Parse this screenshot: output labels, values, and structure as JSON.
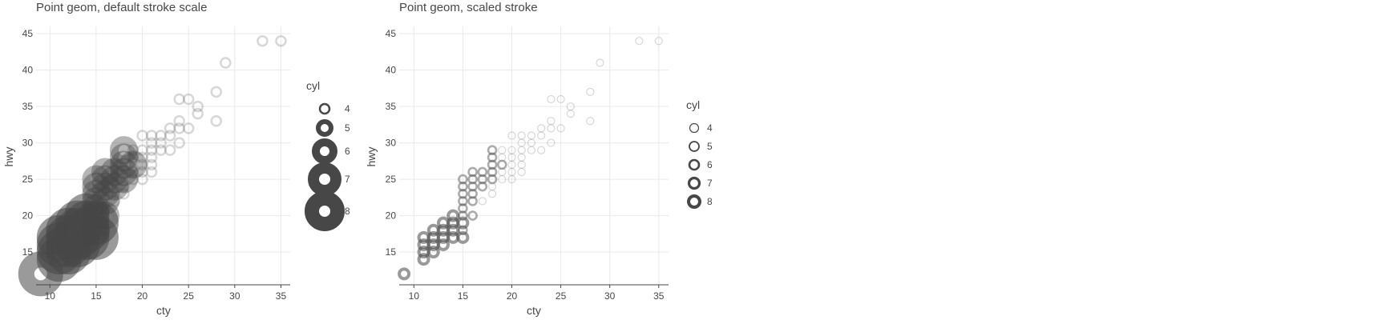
{
  "chart_data": [
    {
      "type": "scatter",
      "title": "Point geom, default stroke scale",
      "xlabel": "cty",
      "ylabel": "hwy",
      "xlim": [
        8.5,
        36
      ],
      "ylim": [
        10.5,
        46
      ],
      "x_ticks": [
        "10",
        "15",
        "20",
        "25",
        "30",
        "35"
      ],
      "y_ticks": [
        "15",
        "20",
        "25",
        "30",
        "35",
        "40",
        "45"
      ],
      "grid": true,
      "legend": {
        "title": "cyl",
        "position": "right",
        "entries": [
          {
            "label": "4",
            "cyl": 4
          },
          {
            "label": "5",
            "cyl": 5
          },
          {
            "label": "6",
            "cyl": 6
          },
          {
            "label": "7",
            "cyl": 7
          },
          {
            "label": "8",
            "cyl": 8
          }
        ]
      },
      "stroke_scale": "default",
      "points": [
        {
          "x": 9,
          "y": 12,
          "cyl": 8
        },
        {
          "x": 11,
          "y": 14,
          "cyl": 8
        },
        {
          "x": 11,
          "y": 15,
          "cyl": 8
        },
        {
          "x": 11,
          "y": 16,
          "cyl": 8
        },
        {
          "x": 11,
          "y": 17,
          "cyl": 8
        },
        {
          "x": 12,
          "y": 15,
          "cyl": 8
        },
        {
          "x": 12,
          "y": 16,
          "cyl": 8
        },
        {
          "x": 12,
          "y": 17,
          "cyl": 8
        },
        {
          "x": 12,
          "y": 18,
          "cyl": 8
        },
        {
          "x": 13,
          "y": 16,
          "cyl": 8
        },
        {
          "x": 13,
          "y": 17,
          "cyl": 8
        },
        {
          "x": 13,
          "y": 18,
          "cyl": 8
        },
        {
          "x": 13,
          "y": 19,
          "cyl": 8
        },
        {
          "x": 14,
          "y": 17,
          "cyl": 8
        },
        {
          "x": 14,
          "y": 18,
          "cyl": 8
        },
        {
          "x": 14,
          "y": 19,
          "cyl": 8
        },
        {
          "x": 14,
          "y": 20,
          "cyl": 8
        },
        {
          "x": 15,
          "y": 17,
          "cyl": 8
        },
        {
          "x": 15,
          "y": 18,
          "cyl": 6
        },
        {
          "x": 15,
          "y": 19,
          "cyl": 8
        },
        {
          "x": 15,
          "y": 20,
          "cyl": 6
        },
        {
          "x": 15,
          "y": 21,
          "cyl": 6
        },
        {
          "x": 15,
          "y": 22,
          "cyl": 6
        },
        {
          "x": 15,
          "y": 23,
          "cyl": 6
        },
        {
          "x": 15,
          "y": 24,
          "cyl": 6
        },
        {
          "x": 15,
          "y": 25,
          "cyl": 6
        },
        {
          "x": 16,
          "y": 20,
          "cyl": 6
        },
        {
          "x": 16,
          "y": 22,
          "cyl": 6
        },
        {
          "x": 16,
          "y": 23,
          "cyl": 6
        },
        {
          "x": 16,
          "y": 24,
          "cyl": 6
        },
        {
          "x": 16,
          "y": 25,
          "cyl": 6
        },
        {
          "x": 16,
          "y": 26,
          "cyl": 6
        },
        {
          "x": 17,
          "y": 22,
          "cyl": 4
        },
        {
          "x": 17,
          "y": 24,
          "cyl": 6
        },
        {
          "x": 17,
          "y": 25,
          "cyl": 6
        },
        {
          "x": 17,
          "y": 26,
          "cyl": 6
        },
        {
          "x": 18,
          "y": 23,
          "cyl": 4
        },
        {
          "x": 18,
          "y": 24,
          "cyl": 4
        },
        {
          "x": 18,
          "y": 25,
          "cyl": 6
        },
        {
          "x": 18,
          "y": 26,
          "cyl": 6
        },
        {
          "x": 18,
          "y": 27,
          "cyl": 6
        },
        {
          "x": 18,
          "y": 28,
          "cyl": 6
        },
        {
          "x": 18,
          "y": 29,
          "cyl": 6
        },
        {
          "x": 19,
          "y": 25,
          "cyl": 4
        },
        {
          "x": 19,
          "y": 26,
          "cyl": 4
        },
        {
          "x": 19,
          "y": 27,
          "cyl": 6
        },
        {
          "x": 19,
          "y": 28,
          "cyl": 4
        },
        {
          "x": 19,
          "y": 29,
          "cyl": 4
        },
        {
          "x": 20,
          "y": 25,
          "cyl": 4
        },
        {
          "x": 20,
          "y": 26,
          "cyl": 4
        },
        {
          "x": 20,
          "y": 27,
          "cyl": 4
        },
        {
          "x": 20,
          "y": 28,
          "cyl": 4
        },
        {
          "x": 20,
          "y": 29,
          "cyl": 4
        },
        {
          "x": 20,
          "y": 31,
          "cyl": 4
        },
        {
          "x": 21,
          "y": 26,
          "cyl": 4
        },
        {
          "x": 21,
          "y": 27,
          "cyl": 4
        },
        {
          "x": 21,
          "y": 28,
          "cyl": 4
        },
        {
          "x": 21,
          "y": 29,
          "cyl": 4
        },
        {
          "x": 21,
          "y": 30,
          "cyl": 4
        },
        {
          "x": 21,
          "y": 31,
          "cyl": 4
        },
        {
          "x": 22,
          "y": 29,
          "cyl": 4
        },
        {
          "x": 22,
          "y": 30,
          "cyl": 4
        },
        {
          "x": 22,
          "y": 31,
          "cyl": 4
        },
        {
          "x": 23,
          "y": 29,
          "cyl": 4
        },
        {
          "x": 23,
          "y": 31,
          "cyl": 4
        },
        {
          "x": 23,
          "y": 32,
          "cyl": 4
        },
        {
          "x": 24,
          "y": 30,
          "cyl": 4
        },
        {
          "x": 24,
          "y": 32,
          "cyl": 4
        },
        {
          "x": 24,
          "y": 33,
          "cyl": 4
        },
        {
          "x": 24,
          "y": 36,
          "cyl": 4
        },
        {
          "x": 25,
          "y": 32,
          "cyl": 4
        },
        {
          "x": 25,
          "y": 36,
          "cyl": 4
        },
        {
          "x": 26,
          "y": 34,
          "cyl": 4
        },
        {
          "x": 26,
          "y": 35,
          "cyl": 4
        },
        {
          "x": 28,
          "y": 33,
          "cyl": 4
        },
        {
          "x": 28,
          "y": 37,
          "cyl": 4
        },
        {
          "x": 29,
          "y": 41,
          "cyl": 4
        },
        {
          "x": 33,
          "y": 44,
          "cyl": 4
        },
        {
          "x": 35,
          "y": 44,
          "cyl": 4
        }
      ]
    },
    {
      "type": "scatter",
      "title": "Point geom, scaled stroke",
      "xlabel": "cty",
      "ylabel": "hwy",
      "xlim": [
        8.5,
        36
      ],
      "ylim": [
        10.5,
        46
      ],
      "x_ticks": [
        "10",
        "15",
        "20",
        "25",
        "30",
        "35"
      ],
      "y_ticks": [
        "15",
        "20",
        "25",
        "30",
        "35",
        "40",
        "45"
      ],
      "grid": true,
      "legend": {
        "title": "cyl",
        "position": "right",
        "entries": [
          {
            "label": "4",
            "cyl": 4
          },
          {
            "label": "5",
            "cyl": 5
          },
          {
            "label": "6",
            "cyl": 6
          },
          {
            "label": "7",
            "cyl": 7
          },
          {
            "label": "8",
            "cyl": 8
          }
        ]
      },
      "stroke_scale": "scaled",
      "points": [
        {
          "x": 9,
          "y": 12,
          "cyl": 8
        },
        {
          "x": 11,
          "y": 14,
          "cyl": 8
        },
        {
          "x": 11,
          "y": 15,
          "cyl": 8
        },
        {
          "x": 11,
          "y": 16,
          "cyl": 8
        },
        {
          "x": 11,
          "y": 17,
          "cyl": 8
        },
        {
          "x": 12,
          "y": 15,
          "cyl": 8
        },
        {
          "x": 12,
          "y": 16,
          "cyl": 8
        },
        {
          "x": 12,
          "y": 17,
          "cyl": 8
        },
        {
          "x": 12,
          "y": 18,
          "cyl": 8
        },
        {
          "x": 13,
          "y": 16,
          "cyl": 8
        },
        {
          "x": 13,
          "y": 17,
          "cyl": 8
        },
        {
          "x": 13,
          "y": 18,
          "cyl": 8
        },
        {
          "x": 13,
          "y": 19,
          "cyl": 8
        },
        {
          "x": 14,
          "y": 17,
          "cyl": 8
        },
        {
          "x": 14,
          "y": 18,
          "cyl": 8
        },
        {
          "x": 14,
          "y": 19,
          "cyl": 8
        },
        {
          "x": 14,
          "y": 20,
          "cyl": 8
        },
        {
          "x": 15,
          "y": 17,
          "cyl": 8
        },
        {
          "x": 15,
          "y": 18,
          "cyl": 6
        },
        {
          "x": 15,
          "y": 19,
          "cyl": 8
        },
        {
          "x": 15,
          "y": 20,
          "cyl": 6
        },
        {
          "x": 15,
          "y": 21,
          "cyl": 6
        },
        {
          "x": 15,
          "y": 22,
          "cyl": 6
        },
        {
          "x": 15,
          "y": 23,
          "cyl": 6
        },
        {
          "x": 15,
          "y": 24,
          "cyl": 6
        },
        {
          "x": 15,
          "y": 25,
          "cyl": 6
        },
        {
          "x": 16,
          "y": 20,
          "cyl": 6
        },
        {
          "x": 16,
          "y": 22,
          "cyl": 6
        },
        {
          "x": 16,
          "y": 23,
          "cyl": 6
        },
        {
          "x": 16,
          "y": 24,
          "cyl": 6
        },
        {
          "x": 16,
          "y": 25,
          "cyl": 6
        },
        {
          "x": 16,
          "y": 26,
          "cyl": 6
        },
        {
          "x": 17,
          "y": 22,
          "cyl": 4
        },
        {
          "x": 17,
          "y": 24,
          "cyl": 6
        },
        {
          "x": 17,
          "y": 25,
          "cyl": 6
        },
        {
          "x": 17,
          "y": 26,
          "cyl": 6
        },
        {
          "x": 18,
          "y": 23,
          "cyl": 4
        },
        {
          "x": 18,
          "y": 24,
          "cyl": 4
        },
        {
          "x": 18,
          "y": 25,
          "cyl": 6
        },
        {
          "x": 18,
          "y": 26,
          "cyl": 6
        },
        {
          "x": 18,
          "y": 27,
          "cyl": 6
        },
        {
          "x": 18,
          "y": 28,
          "cyl": 6
        },
        {
          "x": 18,
          "y": 29,
          "cyl": 6
        },
        {
          "x": 19,
          "y": 25,
          "cyl": 4
        },
        {
          "x": 19,
          "y": 26,
          "cyl": 4
        },
        {
          "x": 19,
          "y": 27,
          "cyl": 6
        },
        {
          "x": 19,
          "y": 28,
          "cyl": 4
        },
        {
          "x": 19,
          "y": 29,
          "cyl": 4
        },
        {
          "x": 20,
          "y": 25,
          "cyl": 4
        },
        {
          "x": 20,
          "y": 26,
          "cyl": 4
        },
        {
          "x": 20,
          "y": 27,
          "cyl": 4
        },
        {
          "x": 20,
          "y": 28,
          "cyl": 4
        },
        {
          "x": 20,
          "y": 29,
          "cyl": 4
        },
        {
          "x": 20,
          "y": 31,
          "cyl": 4
        },
        {
          "x": 21,
          "y": 26,
          "cyl": 4
        },
        {
          "x": 21,
          "y": 27,
          "cyl": 4
        },
        {
          "x": 21,
          "y": 28,
          "cyl": 4
        },
        {
          "x": 21,
          "y": 29,
          "cyl": 4
        },
        {
          "x": 21,
          "y": 30,
          "cyl": 4
        },
        {
          "x": 21,
          "y": 31,
          "cyl": 4
        },
        {
          "x": 22,
          "y": 29,
          "cyl": 4
        },
        {
          "x": 22,
          "y": 30,
          "cyl": 4
        },
        {
          "x": 22,
          "y": 31,
          "cyl": 4
        },
        {
          "x": 23,
          "y": 29,
          "cyl": 4
        },
        {
          "x": 23,
          "y": 31,
          "cyl": 4
        },
        {
          "x": 23,
          "y": 32,
          "cyl": 4
        },
        {
          "x": 24,
          "y": 30,
          "cyl": 4
        },
        {
          "x": 24,
          "y": 32,
          "cyl": 4
        },
        {
          "x": 24,
          "y": 33,
          "cyl": 4
        },
        {
          "x": 24,
          "y": 36,
          "cyl": 4
        },
        {
          "x": 25,
          "y": 32,
          "cyl": 4
        },
        {
          "x": 25,
          "y": 36,
          "cyl": 4
        },
        {
          "x": 26,
          "y": 34,
          "cyl": 4
        },
        {
          "x": 26,
          "y": 35,
          "cyl": 4
        },
        {
          "x": 28,
          "y": 33,
          "cyl": 4
        },
        {
          "x": 28,
          "y": 37,
          "cyl": 4
        },
        {
          "x": 29,
          "y": 41,
          "cyl": 4
        },
        {
          "x": 33,
          "y": 44,
          "cyl": 4
        },
        {
          "x": 35,
          "y": 44,
          "cyl": 4
        }
      ]
    }
  ],
  "colors": {
    "point": "#474747",
    "text": "#474747",
    "grid": "#e9e9e9",
    "axis": "#474747",
    "background": "#ffffff"
  }
}
